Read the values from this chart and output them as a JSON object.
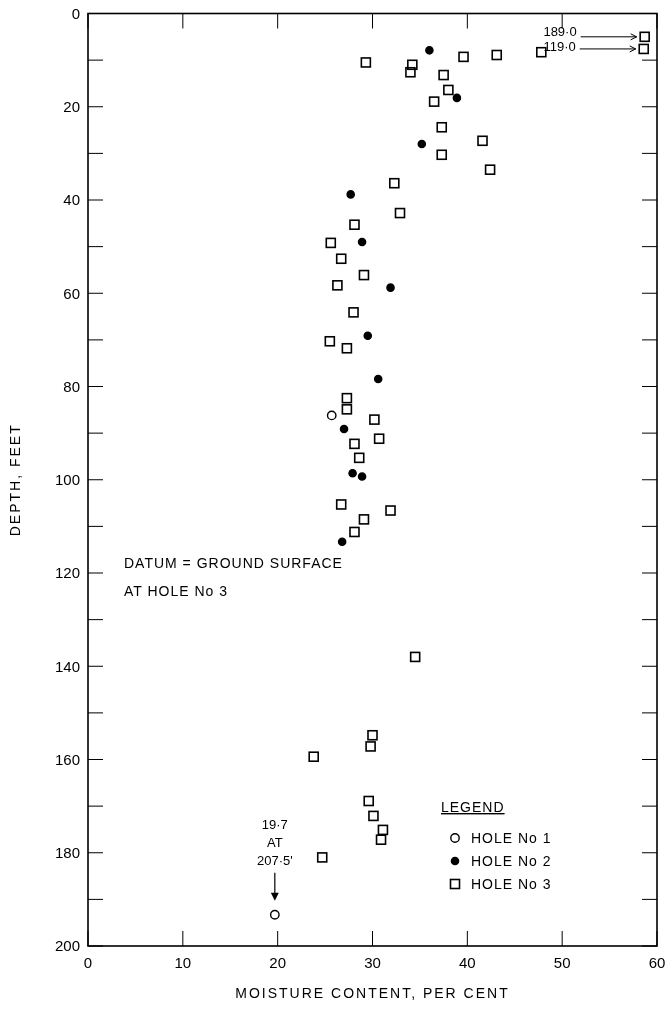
{
  "chart_data": {
    "type": "scatter",
    "xlabel": "MOISTURE CONTENT, PER CENT",
    "ylabel": "DEPTH, FEET",
    "legend_title": "LEGEND",
    "legend": "bottom right",
    "xlim": [
      0,
      60
    ],
    "xticks": [
      0,
      10,
      20,
      30,
      40,
      50,
      60
    ],
    "ylim": [
      200,
      0
    ],
    "yticks": [
      0,
      {
        "value": 10,
        "label": null
      },
      20,
      {
        "value": 30,
        "label": null
      },
      40,
      {
        "value": 50,
        "label": null
      },
      60,
      {
        "value": 70,
        "label": null
      },
      80,
      {
        "value": 90,
        "label": null
      },
      100,
      {
        "value": 110,
        "label": null
      },
      120,
      {
        "value": 130,
        "label": null
      },
      140,
      {
        "value": 150,
        "label": null
      },
      160,
      {
        "value": 170,
        "label": null
      },
      180,
      {
        "value": 190,
        "label": null
      },
      200
    ],
    "grid": false,
    "series": [
      {
        "name": "HOLE No 1",
        "color": "#000000",
        "marker": "circle",
        "x": [
          25.7,
          19.7
        ],
        "values": [
          86.2,
          193.3
        ]
      },
      {
        "name": "HOLE No 2",
        "color": "#000000",
        "marker": "circle",
        "x": [
          36.0,
          38.9,
          35.2,
          27.7,
          28.9,
          31.9,
          29.5,
          30.6,
          27.0,
          27.9,
          28.9,
          26.8
        ],
        "values": [
          7.9,
          18.1,
          28.0,
          38.8,
          49.0,
          58.8,
          69.1,
          78.4,
          89.1,
          98.6,
          99.3,
          113.3
        ]
      },
      {
        "name": "HOLE No 3",
        "color": "#000000",
        "marker": "square",
        "x": [
          58.7,
          58.6,
          47.8,
          43.1,
          39.6,
          29.3,
          34.2,
          34.0,
          37.5,
          38.0,
          36.5,
          37.3,
          41.6,
          37.3,
          42.4,
          32.3,
          32.9,
          28.1,
          25.6,
          26.7,
          29.1,
          26.3,
          28.0,
          25.5,
          27.3,
          27.3,
          27.3,
          30.2,
          30.7,
          28.1,
          28.6,
          26.7,
          31.9,
          29.1,
          28.1,
          34.5,
          30.0,
          29.8,
          23.8,
          29.6,
          30.1,
          31.1,
          30.9,
          24.7
        ],
        "values": [
          5.0,
          7.6,
          8.3,
          8.9,
          9.3,
          10.5,
          11.0,
          12.6,
          13.2,
          16.4,
          18.9,
          24.4,
          27.3,
          30.3,
          33.5,
          36.4,
          42.8,
          45.3,
          49.2,
          52.6,
          56.1,
          58.3,
          64.1,
          70.3,
          71.8,
          82.5,
          84.9,
          87.1,
          91.2,
          92.3,
          95.3,
          105.3,
          106.6,
          108.5,
          111.2,
          138.0,
          154.8,
          157.2,
          159.4,
          168.9,
          172.1,
          175.1,
          177.2,
          181.0
        ]
      }
    ],
    "annotations": [
      "189·0",
      "119·0",
      "19·7\nAT\n207·5'",
      "DATUM = GROUND SURFACE\nAT HOLE No 3"
    ]
  }
}
